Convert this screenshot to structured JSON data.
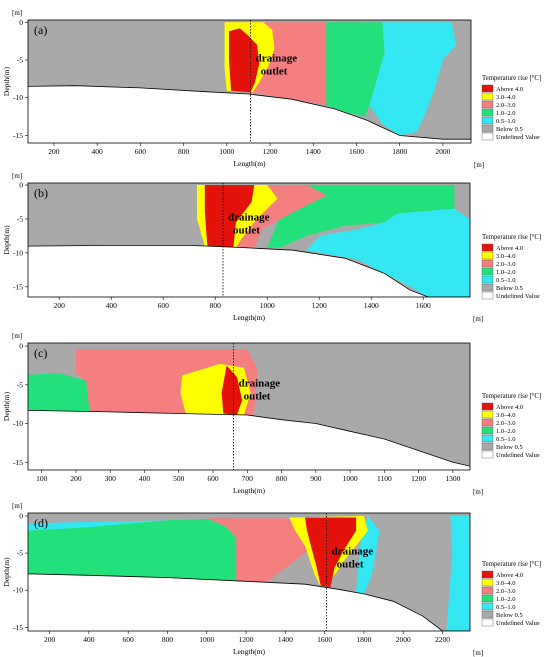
{
  "figure": {
    "unit_label": "[m]",
    "xlabel": "Length(m)",
    "ylabel": "Depth(m)",
    "outlet_line1": "drainage",
    "outlet_line2": "outlet",
    "legend_title": "Temperature rise [°C]",
    "legend_entries": [
      {
        "label": "Above 4.0",
        "color": "#e3120b"
      },
      {
        "label": "3.0–4.0",
        "color": "#ffff00"
      },
      {
        "label": "2.0–3.0",
        "color": "#f47f7f"
      },
      {
        "label": "1.0–2.0",
        "color": "#22e07a"
      },
      {
        "label": "0.5–1.0",
        "color": "#33e8f2"
      },
      {
        "label": "Below 0.5",
        "color": "#a9a9a9"
      },
      {
        "label": "Undefined Value",
        "color": "#ffffff"
      }
    ]
  },
  "chart_data": [
    {
      "type": "heatmap",
      "panel_label": "(a)",
      "xlim": [
        80,
        2130
      ],
      "ylim": [
        -16,
        0.3
      ],
      "xticks": [
        200,
        400,
        600,
        800,
        1000,
        1200,
        1400,
        1600,
        1800,
        2000
      ],
      "yticks": [
        0,
        -5,
        -10,
        -15
      ],
      "outlet_x": 1110,
      "bed_profile": [
        [
          80,
          -8.5
        ],
        [
          300,
          -8.4
        ],
        [
          600,
          -8.7
        ],
        [
          900,
          -9.2
        ],
        [
          1100,
          -9.5
        ],
        [
          1300,
          -10.2
        ],
        [
          1500,
          -11.5
        ],
        [
          1650,
          -13
        ],
        [
          1800,
          -15
        ],
        [
          2000,
          -15.5
        ],
        [
          2130,
          -15.5
        ]
      ],
      "zones": [
        {
          "class": "1.0–2.0",
          "polygon": [
            [
              1460,
              0
            ],
            [
              1720,
              0
            ],
            [
              1730,
              -4
            ],
            [
              1700,
              -7
            ],
            [
              1660,
              -11
            ],
            [
              1640,
              -12.5
            ],
            [
              1560,
              -12
            ],
            [
              1460,
              -11
            ]
          ]
        },
        {
          "class": "0.5–1.0",
          "polygon": [
            [
              1720,
              0
            ],
            [
              2040,
              0
            ],
            [
              2060,
              -3
            ],
            [
              2000,
              -5
            ],
            [
              1960,
              -9
            ],
            [
              1920,
              -12
            ],
            [
              1880,
              -14.5
            ],
            [
              1800,
              -15
            ],
            [
              1720,
              -13.5
            ],
            [
              1660,
              -11
            ],
            [
              1700,
              -7
            ],
            [
              1730,
              -4
            ]
          ]
        },
        {
          "class": "2.0–3.0",
          "polygon": [
            [
              1010,
              0
            ],
            [
              1460,
              0
            ],
            [
              1460,
              -11
            ],
            [
              1300,
              -10.2
            ],
            [
              1200,
              -9.7
            ],
            [
              1010,
              -9
            ]
          ]
        },
        {
          "class": "3.0–4.0",
          "polygon": [
            [
              990,
              0
            ],
            [
              1170,
              0
            ],
            [
              1210,
              -1
            ],
            [
              1220,
              -3.5
            ],
            [
              1190,
              -6
            ],
            [
              1150,
              -8
            ],
            [
              1120,
              -9.3
            ],
            [
              1000,
              -9.1
            ],
            [
              990,
              -6
            ]
          ]
        },
        {
          "class": "Above 4.0",
          "polygon": [
            [
              1010,
              -1.2
            ],
            [
              1060,
              -0.8
            ],
            [
              1100,
              -1.8
            ],
            [
              1140,
              -3
            ],
            [
              1150,
              -5.5
            ],
            [
              1130,
              -8
            ],
            [
              1110,
              -9.3
            ],
            [
              1020,
              -9.1
            ],
            [
              1010,
              -5
            ]
          ]
        }
      ]
    },
    {
      "type": "heatmap",
      "panel_label": "(b)",
      "xlim": [
        80,
        1780
      ],
      "ylim": [
        -16.5,
        0.3
      ],
      "xticks": [
        200,
        400,
        600,
        800,
        1000,
        1200,
        1400,
        1600
      ],
      "yticks": [
        0,
        -5,
        -10,
        -15
      ],
      "outlet_x": 830,
      "bed_profile": [
        [
          80,
          -9
        ],
        [
          400,
          -8.9
        ],
        [
          700,
          -8.9
        ],
        [
          900,
          -9.2
        ],
        [
          1100,
          -9.6
        ],
        [
          1300,
          -10.8
        ],
        [
          1450,
          -13
        ],
        [
          1550,
          -15.5
        ],
        [
          1620,
          -16.5
        ],
        [
          1780,
          -16.5
        ]
      ],
      "zones": [
        {
          "class": "1.0–2.0",
          "polygon": [
            [
              1100,
              0
            ],
            [
              1720,
              0
            ],
            [
              1720,
              -4
            ],
            [
              1600,
              -4.2
            ],
            [
              1450,
              -5.5
            ],
            [
              1300,
              -6
            ],
            [
              1150,
              -7.5
            ],
            [
              1050,
              -9.2
            ],
            [
              1000,
              -9.2
            ]
          ]
        },
        {
          "class": "0.5–1.0",
          "polygon": [
            [
              1500,
              -4.2
            ],
            [
              1720,
              -3.5
            ],
            [
              1780,
              -5
            ],
            [
              1780,
              -16.5
            ],
            [
              1620,
              -16.5
            ],
            [
              1550,
              -15
            ],
            [
              1450,
              -13
            ],
            [
              1350,
              -11
            ],
            [
              1150,
              -9.6
            ],
            [
              1200,
              -7.5
            ],
            [
              1350,
              -6.5
            ],
            [
              1450,
              -5.5
            ]
          ]
        },
        {
          "class": "2.0–3.0",
          "polygon": [
            [
              750,
              0
            ],
            [
              1150,
              0
            ],
            [
              1230,
              -1.5
            ],
            [
              1100,
              -4
            ],
            [
              980,
              -6.5
            ],
            [
              950,
              -9.3
            ],
            [
              780,
              -9.1
            ],
            [
              750,
              -4
            ]
          ]
        },
        {
          "class": "3.0–4.0",
          "polygon": [
            [
              730,
              0
            ],
            [
              1000,
              0
            ],
            [
              1040,
              -2
            ],
            [
              960,
              -5
            ],
            [
              900,
              -8
            ],
            [
              880,
              -9.2
            ],
            [
              760,
              -9
            ],
            [
              730,
              -5
            ]
          ]
        },
        {
          "class": "Above 4.0",
          "polygon": [
            [
              760,
              0
            ],
            [
              950,
              0
            ],
            [
              940,
              -2.5
            ],
            [
              880,
              -5.5
            ],
            [
              870,
              -9.2
            ],
            [
              770,
              -9
            ],
            [
              760,
              -4
            ]
          ]
        }
      ]
    },
    {
      "type": "heatmap",
      "panel_label": "(c)",
      "xlim": [
        60,
        1350
      ],
      "ylim": [
        -16,
        0.4
      ],
      "xticks": [
        100,
        200,
        300,
        400,
        500,
        600,
        700,
        800,
        900,
        1000,
        1100,
        1200,
        1300
      ],
      "yticks": [
        0,
        -5,
        -10,
        -15
      ],
      "outlet_x": 660,
      "bed_profile": [
        [
          60,
          -8.3
        ],
        [
          300,
          -8.5
        ],
        [
          500,
          -8.7
        ],
        [
          700,
          -8.9
        ],
        [
          800,
          -9.5
        ],
        [
          900,
          -10
        ],
        [
          1000,
          -11
        ],
        [
          1100,
          -12
        ],
        [
          1200,
          -13.5
        ],
        [
          1300,
          -15
        ],
        [
          1350,
          -15.5
        ]
      ],
      "zones": [
        {
          "class": "1.0–2.0",
          "polygon": [
            [
              60,
              -3.7
            ],
            [
              150,
              -3.5
            ],
            [
              230,
              -4.5
            ],
            [
              240,
              -8.6
            ],
            [
              60,
              -8.3
            ]
          ]
        },
        {
          "class": "2.0–3.0",
          "polygon": [
            [
              200,
              -0.4
            ],
            [
              700,
              -0.4
            ],
            [
              730,
              -3
            ],
            [
              720,
              -8.9
            ],
            [
              240,
              -8.6
            ],
            [
              230,
              -4.5
            ],
            [
              200,
              -3.5
            ]
          ]
        },
        {
          "class": "3.0–4.0",
          "polygon": [
            [
              510,
              -3.8
            ],
            [
              620,
              -2.3
            ],
            [
              690,
              -2.8
            ],
            [
              710,
              -6
            ],
            [
              690,
              -8.9
            ],
            [
              520,
              -8.7
            ],
            [
              505,
              -6
            ]
          ]
        },
        {
          "class": "Above 4.0",
          "polygon": [
            [
              640,
              -2.5
            ],
            [
              670,
              -4
            ],
            [
              685,
              -7
            ],
            [
              670,
              -8.9
            ],
            [
              630,
              -8.7
            ],
            [
              625,
              -6
            ]
          ]
        }
      ]
    },
    {
      "type": "heatmap",
      "panel_label": "(d)",
      "xlim": [
        90,
        2340
      ],
      "ylim": [
        -15.5,
        0.4
      ],
      "xticks": [
        200,
        400,
        600,
        800,
        1000,
        1200,
        1400,
        1600,
        1800,
        2000,
        2200
      ],
      "yticks": [
        0,
        -5,
        -10,
        -15
      ],
      "outlet_x": 1610,
      "bed_profile": [
        [
          90,
          -7.8
        ],
        [
          400,
          -8
        ],
        [
          800,
          -8.3
        ],
        [
          1200,
          -8.8
        ],
        [
          1500,
          -9.2
        ],
        [
          1650,
          -9.8
        ],
        [
          1800,
          -10.5
        ],
        [
          1950,
          -11.5
        ],
        [
          2100,
          -13.5
        ],
        [
          2200,
          -15.5
        ],
        [
          2340,
          -15.5
        ]
      ],
      "zones": [
        {
          "class": "0.5–1.0",
          "polygon": [
            [
              90,
              -1
            ],
            [
              400,
              -0.8
            ],
            [
              800,
              -0.6
            ],
            [
              1100,
              -0.4
            ],
            [
              1100,
              -8.7
            ],
            [
              800,
              -8.3
            ],
            [
              400,
              -8
            ],
            [
              90,
              -7.8
            ]
          ]
        },
        {
          "class": "1.0–2.0",
          "polygon": [
            [
              90,
              -2
            ],
            [
              400,
              -1.5
            ],
            [
              800,
              -0.6
            ],
            [
              1100,
              -0.3
            ],
            [
              1250,
              -0.5
            ],
            [
              1350,
              -2
            ],
            [
              1300,
              -8.9
            ],
            [
              1100,
              -8.7
            ],
            [
              800,
              -8.3
            ],
            [
              400,
              -8
            ],
            [
              90,
              -7.8
            ]
          ]
        },
        {
          "class": "2.0–3.0",
          "polygon": [
            [
              1000,
              -0.3
            ],
            [
              1400,
              -0.3
            ],
            [
              1530,
              -1
            ],
            [
              1550,
              -4
            ],
            [
              1450,
              -6
            ],
            [
              1350,
              -8
            ],
            [
              1300,
              -9
            ],
            [
              1150,
              -8.8
            ],
            [
              1150,
              -3
            ],
            [
              1100,
              -1.5
            ]
          ]
        },
        {
          "class": "0.5–1.0",
          "polygon": [
            [
              1820,
              0
            ],
            [
              1880,
              -2
            ],
            [
              1840,
              -8
            ],
            [
              1800,
              -10.5
            ],
            [
              1760,
              -10.2
            ],
            [
              1780,
              -4
            ]
          ]
        },
        {
          "class": "0.5–1.0",
          "polygon": [
            [
              2240,
              0
            ],
            [
              2340,
              0
            ],
            [
              2340,
              -15.5
            ],
            [
              2220,
              -15.5
            ],
            [
              2250,
              -5
            ]
          ]
        },
        {
          "class": "3.0–4.0",
          "polygon": [
            [
              1420,
              -0.2
            ],
            [
              1800,
              0
            ],
            [
              1820,
              -2
            ],
            [
              1760,
              -4
            ],
            [
              1700,
              -6
            ],
            [
              1650,
              -8
            ],
            [
              1580,
              -9.5
            ],
            [
              1550,
              -8
            ],
            [
              1500,
              -4
            ],
            [
              1450,
              -2
            ]
          ]
        },
        {
          "class": "Above 4.0",
          "polygon": [
            [
              1500,
              -0.2
            ],
            [
              1760,
              -0.2
            ],
            [
              1760,
              -2
            ],
            [
              1700,
              -4.5
            ],
            [
              1650,
              -7
            ],
            [
              1630,
              -9.6
            ],
            [
              1580,
              -9.4
            ],
            [
              1560,
              -7
            ],
            [
              1530,
              -4
            ],
            [
              1510,
              -2
            ]
          ]
        }
      ]
    }
  ]
}
